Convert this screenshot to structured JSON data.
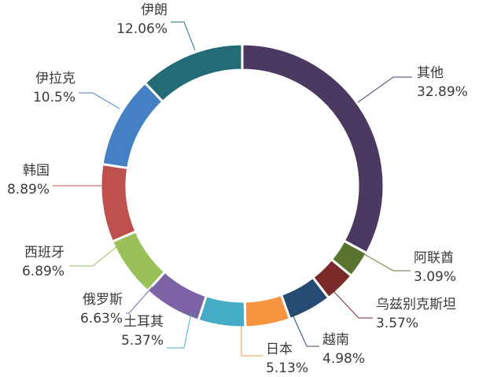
{
  "chart_data": {
    "type": "pie",
    "donut": true,
    "title": "",
    "slices": [
      {
        "name": "其他",
        "value": 32.89,
        "label": "32.89%",
        "color": "#4b3961"
      },
      {
        "name": "阿联酋",
        "value": 3.09,
        "label": "3.09%",
        "color": "#5a742f"
      },
      {
        "name": "乌兹别克斯坦",
        "value": 3.57,
        "label": "3.57%",
        "color": "#7b2a2a"
      },
      {
        "name": "越南",
        "value": 4.98,
        "label": "4.98%",
        "color": "#264b73"
      },
      {
        "name": "日本",
        "value": 5.13,
        "label": "5.13%",
        "color": "#f6943f"
      },
      {
        "name": "土耳其",
        "value": 5.37,
        "label": "5.37%",
        "color": "#45acc5"
      },
      {
        "name": "俄罗斯",
        "value": 6.63,
        "label": "6.63%",
        "color": "#7c63a5"
      },
      {
        "name": "西班牙",
        "value": 6.89,
        "label": "6.89%",
        "color": "#9ac05a"
      },
      {
        "name": "韩国",
        "value": 8.89,
        "label": "8.89%",
        "color": "#c0504d"
      },
      {
        "name": "伊拉克",
        "value": 10.5,
        "label": "10.5%",
        "color": "#4680c4"
      },
      {
        "name": "伊朗",
        "value": 12.06,
        "label": "12.06%",
        "color": "#246b78"
      }
    ]
  }
}
